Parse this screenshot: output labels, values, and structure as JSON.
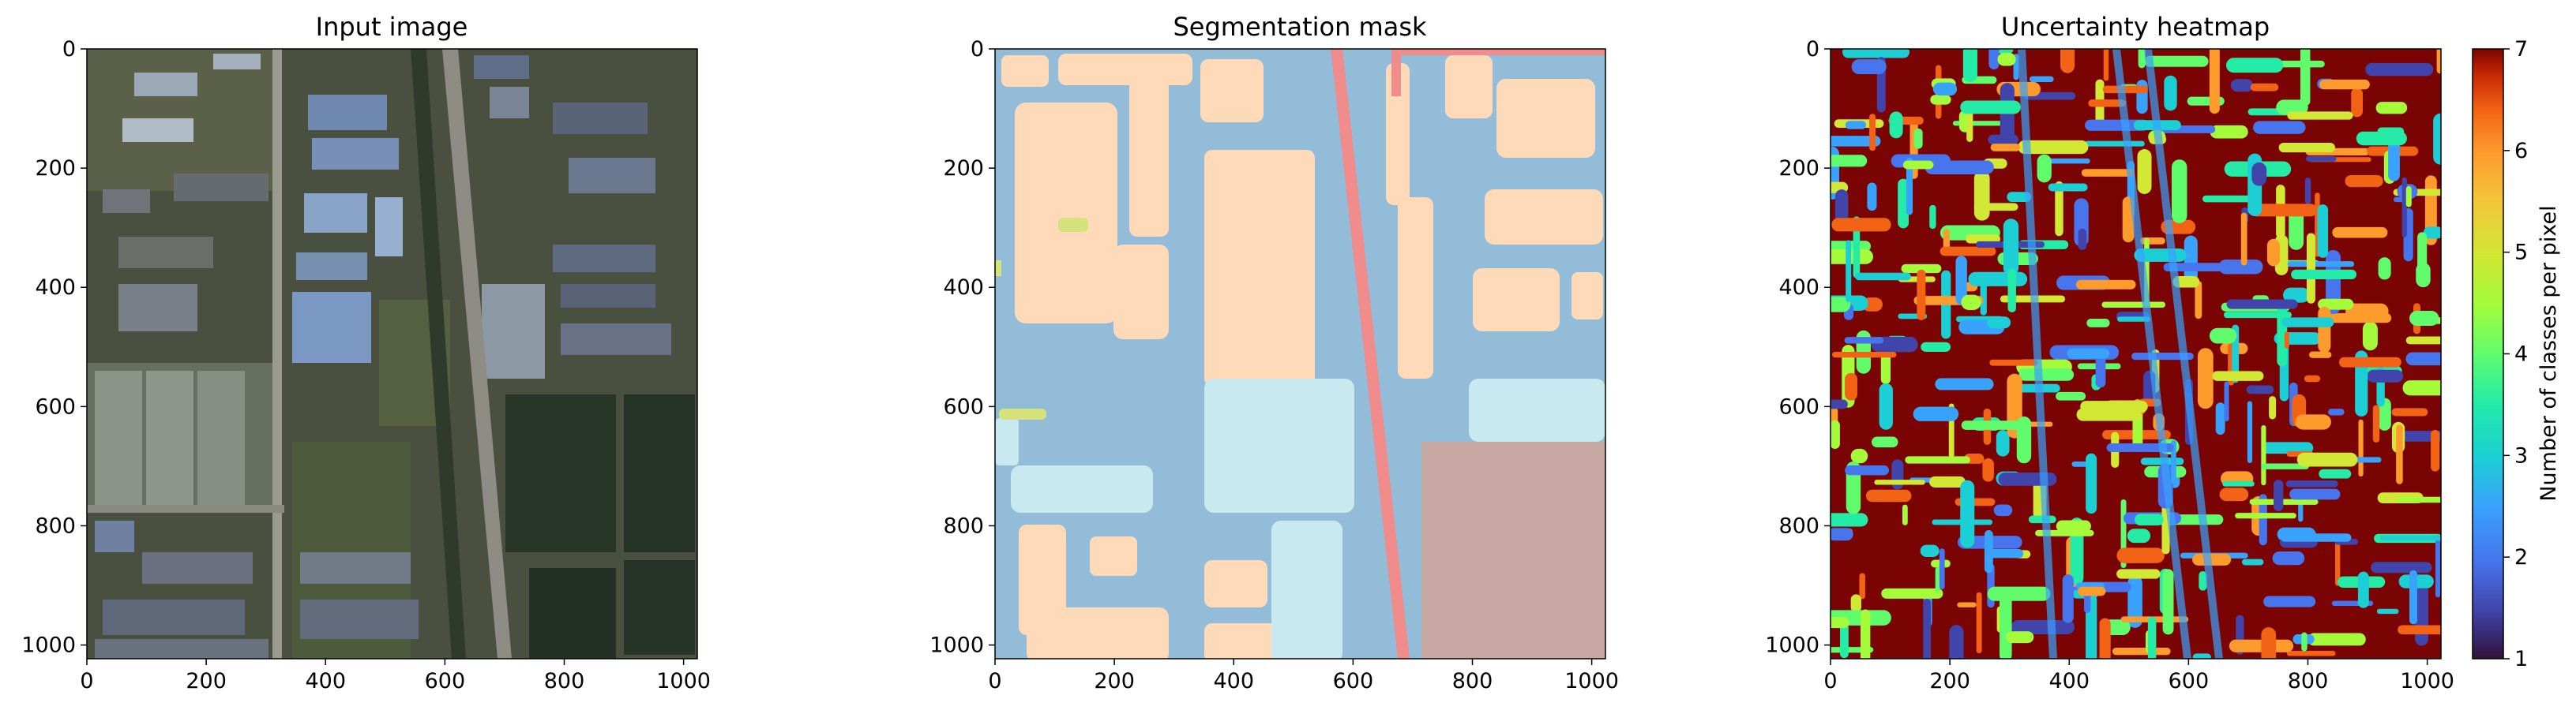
{
  "chart_data": [
    {
      "type": "image",
      "title": "Input image",
      "xlim": [
        0,
        1023
      ],
      "ylim": [
        1023,
        0
      ],
      "xticks": [
        0,
        200,
        400,
        600,
        800,
        1000
      ],
      "yticks": [
        0,
        200,
        400,
        600,
        800,
        1000
      ],
      "content": "aerial photograph"
    },
    {
      "type": "heatmap",
      "title": "Segmentation mask",
      "xlim": [
        0,
        1023
      ],
      "ylim": [
        1023,
        0
      ],
      "xticks": [
        0,
        200,
        400,
        600,
        800,
        1000
      ],
      "yticks": [
        0,
        200,
        400,
        600,
        800,
        1000
      ],
      "class_colors": [
        "#93bcd9",
        "#fedab8",
        "#c9e9f0",
        "#c8a8a2",
        "#f08c8c",
        "#d6e27b"
      ]
    },
    {
      "type": "heatmap",
      "title": "Uncertainty heatmap",
      "xlim": [
        0,
        1023
      ],
      "ylim": [
        1023,
        0
      ],
      "xticks": [
        0,
        200,
        400,
        600,
        800,
        1000
      ],
      "yticks": [
        0,
        200,
        400,
        600,
        800,
        1000
      ],
      "colormap": "turbo",
      "colorbar": {
        "label": "Number of classes per pixel",
        "range": [
          1,
          7
        ],
        "ticks": [
          1,
          2,
          3,
          4,
          5,
          6,
          7
        ]
      }
    }
  ]
}
